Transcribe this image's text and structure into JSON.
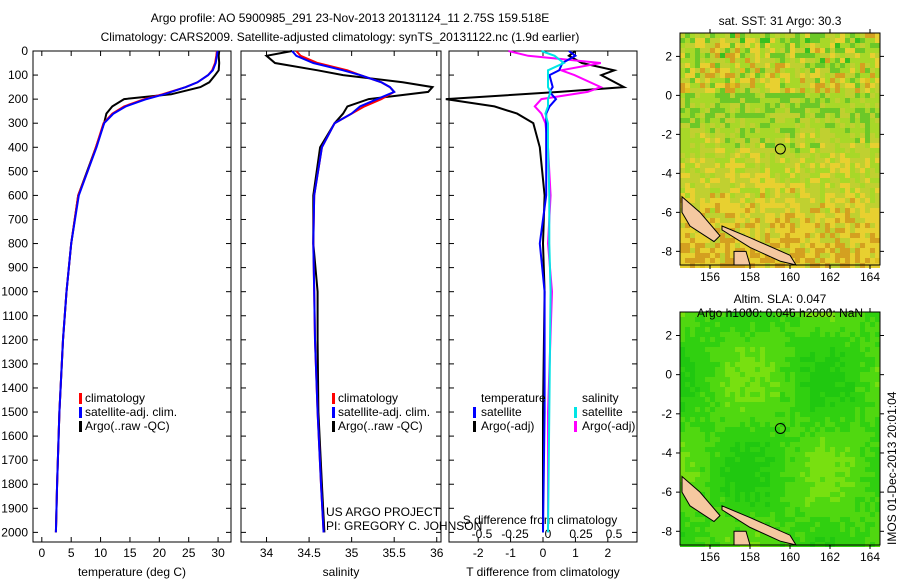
{
  "title_line1": "Argo profile: AO 5900985_291 23-Nov-2013 20131124_11 2.75S 159.518E",
  "title_line2": "Climatology: CARS2009. Satellite-adjusted climatology: synTS_20131122.nc (1.9d earlier)",
  "credit_line1": "US ARGO PROJECT",
  "credit_line2": "PI: GREGORY C. JOHNSON",
  "timestamp": "IMOS 01-Dec-2013 20:01:04",
  "colors": {
    "climatology": "#ff0000",
    "satellite": "#0000ff",
    "argo": "#000000",
    "sal_satellite": "#00e5e5",
    "sal_argo": "#ff00ff"
  },
  "chart_data": [
    {
      "type": "line",
      "xlabel": "temperature (deg C)",
      "ylabel": "depth",
      "xticks": [
        0,
        5,
        10,
        15,
        20,
        25,
        30
      ],
      "xlim": [
        -1.5,
        32.2
      ],
      "ylim": [
        2050,
        0
      ],
      "yticks": [
        0,
        100,
        200,
        300,
        400,
        500,
        600,
        700,
        800,
        900,
        1000,
        1100,
        1200,
        1300,
        1400,
        1500,
        1600,
        1700,
        1800,
        1900,
        2000
      ],
      "legend": [
        "climatology",
        "satellite-adj. clim.",
        "Argo(..raw -QC)"
      ],
      "depth": [
        0,
        20,
        50,
        80,
        100,
        130,
        150,
        180,
        200,
        230,
        260,
        300,
        400,
        500,
        600,
        800,
        1000,
        1200,
        1500,
        1800,
        2000
      ],
      "series": [
        {
          "name": "climatology",
          "values": [
            29.8,
            29.7,
            29.5,
            29,
            28.3,
            26.5,
            24.5,
            20.5,
            17.5,
            14,
            12,
            10.5,
            9.2,
            7.8,
            6.2,
            5,
            4.2,
            3.6,
            3,
            2.6,
            2.4
          ]
        },
        {
          "name": "satellite-adj. clim.",
          "values": [
            29.9,
            29.8,
            29.6,
            29.1,
            28.3,
            26.5,
            24.5,
            20.8,
            17.8,
            14.3,
            12.2,
            10.6,
            9.3,
            7.8,
            6.3,
            5,
            4.2,
            3.6,
            3,
            2.6,
            2.4
          ]
        },
        {
          "name": "Argo(..raw -QC)",
          "values": [
            30.2,
            30.1,
            30.2,
            30.1,
            29.5,
            28.5,
            27,
            22,
            14,
            12,
            11,
            10.6,
            9.2,
            7.7,
            6.2,
            5,
            4.2,
            3.6,
            3,
            2.6,
            2.4
          ]
        }
      ]
    },
    {
      "type": "line",
      "xlabel": "salinity",
      "xticks": [
        34,
        34.5,
        35,
        35.5,
        36
      ],
      "xlim": [
        33.7,
        36.05
      ],
      "ylim": [
        2050,
        0
      ],
      "legend": [
        "climatology",
        "satellite-adj. clim.",
        "Argo(..raw -QC)"
      ],
      "depth": [
        0,
        20,
        50,
        80,
        100,
        130,
        150,
        170,
        200,
        230,
        260,
        300,
        400,
        600,
        800,
        1000,
        1200,
        1500,
        1800,
        2000
      ],
      "series": [
        {
          "name": "climatology",
          "values": [
            34.35,
            34.4,
            34.6,
            34.95,
            35.1,
            35.35,
            35.45,
            35.5,
            35.35,
            35.15,
            35,
            34.8,
            34.65,
            34.56,
            34.55,
            34.56,
            34.57,
            34.6,
            34.64,
            34.67
          ]
        },
        {
          "name": "satellite-adj. clim.",
          "values": [
            34.3,
            34.35,
            34.55,
            34.9,
            35.1,
            35.35,
            35.45,
            35.5,
            35.3,
            35.1,
            35,
            34.8,
            34.65,
            34.56,
            34.55,
            34.56,
            34.57,
            34.6,
            34.64,
            34.67
          ]
        },
        {
          "name": "Argo(..raw -QC)",
          "values": [
            34.3,
            34.0,
            34.1,
            34.6,
            34.9,
            35.6,
            35.95,
            35.9,
            35.2,
            34.95,
            34.9,
            34.8,
            34.63,
            34.55,
            34.55,
            34.6,
            34.6,
            34.61,
            34.65,
            34.68
          ]
        }
      ]
    },
    {
      "type": "line",
      "xlabel": "T difference from climatology",
      "x2label": "S difference from climatology",
      "xticks": [
        -2,
        -1,
        0,
        1,
        2
      ],
      "x2ticks": [
        -0.5,
        -0.25,
        0,
        0.25,
        0.5
      ],
      "xlim": [
        -2.9,
        2.9
      ],
      "ylim": [
        2050,
        0
      ],
      "legend_headers": [
        "temperature",
        "salinity"
      ],
      "legend": [
        "satellite",
        "Argo(-adj)",
        "satellite",
        "Argo(-adj)"
      ],
      "depth": [
        0,
        20,
        50,
        80,
        100,
        150,
        170,
        200,
        230,
        260,
        300,
        400,
        600,
        800,
        1000,
        1500,
        2000
      ],
      "series": [
        {
          "name": "T satellite",
          "values": [
            0.8,
            1.0,
            0.6,
            0.5,
            0.2,
            0.3,
            0.2,
            0.4,
            0.2,
            0.1,
            0.1,
            0.1,
            0.1,
            -0.1,
            0.05,
            0.05,
            0.0
          ]
        },
        {
          "name": "T Argo(-adj)",
          "values": [
            1.0,
            0.8,
            1.2,
            2.2,
            1.8,
            2.5,
            0.5,
            -3.0,
            -1.5,
            -0.8,
            -0.3,
            -0.1,
            0.05,
            0.0,
            0.05,
            0.0,
            0.0
          ]
        },
        {
          "name": "S satellite",
          "values": [
            -0.05,
            0.05,
            0.12,
            0.0,
            0.0,
            0.0,
            0.02,
            0.0,
            0.0,
            -0.02,
            0.0,
            0.0,
            0.01,
            0.01,
            0.02,
            0.01,
            0.0
          ]
        },
        {
          "name": "S Argo(-adj)",
          "values": [
            -0.3,
            -0.15,
            0.4,
            0.1,
            0.2,
            0.4,
            0.3,
            -0.05,
            -0.1,
            -0.05,
            -0.02,
            0.0,
            0.02,
            0.0,
            0.03,
            0.0,
            0.0
          ]
        }
      ]
    },
    {
      "type": "heatmap",
      "title": "sat. SST: 31 Argo: 30.3",
      "xticks": [
        156,
        158,
        160,
        162,
        164
      ],
      "yticks": [
        2,
        0,
        -2,
        -4,
        -6,
        -8
      ],
      "xlim": [
        154.5,
        164.5
      ],
      "ylim": [
        -8.7,
        3.2
      ],
      "marker": [
        159.518,
        -2.75
      ]
    },
    {
      "type": "heatmap",
      "title_line1": "Altim. SLA: 0.047",
      "title_line2": "Argo h1000: 0.046 h2000: NaN",
      "xticks": [
        156,
        158,
        160,
        162,
        164
      ],
      "yticks": [
        2,
        0,
        -2,
        -4,
        -6,
        -8
      ],
      "xlim": [
        154.5,
        164.5
      ],
      "ylim": [
        -8.7,
        3.2
      ],
      "marker": [
        159.518,
        -2.75
      ]
    }
  ]
}
